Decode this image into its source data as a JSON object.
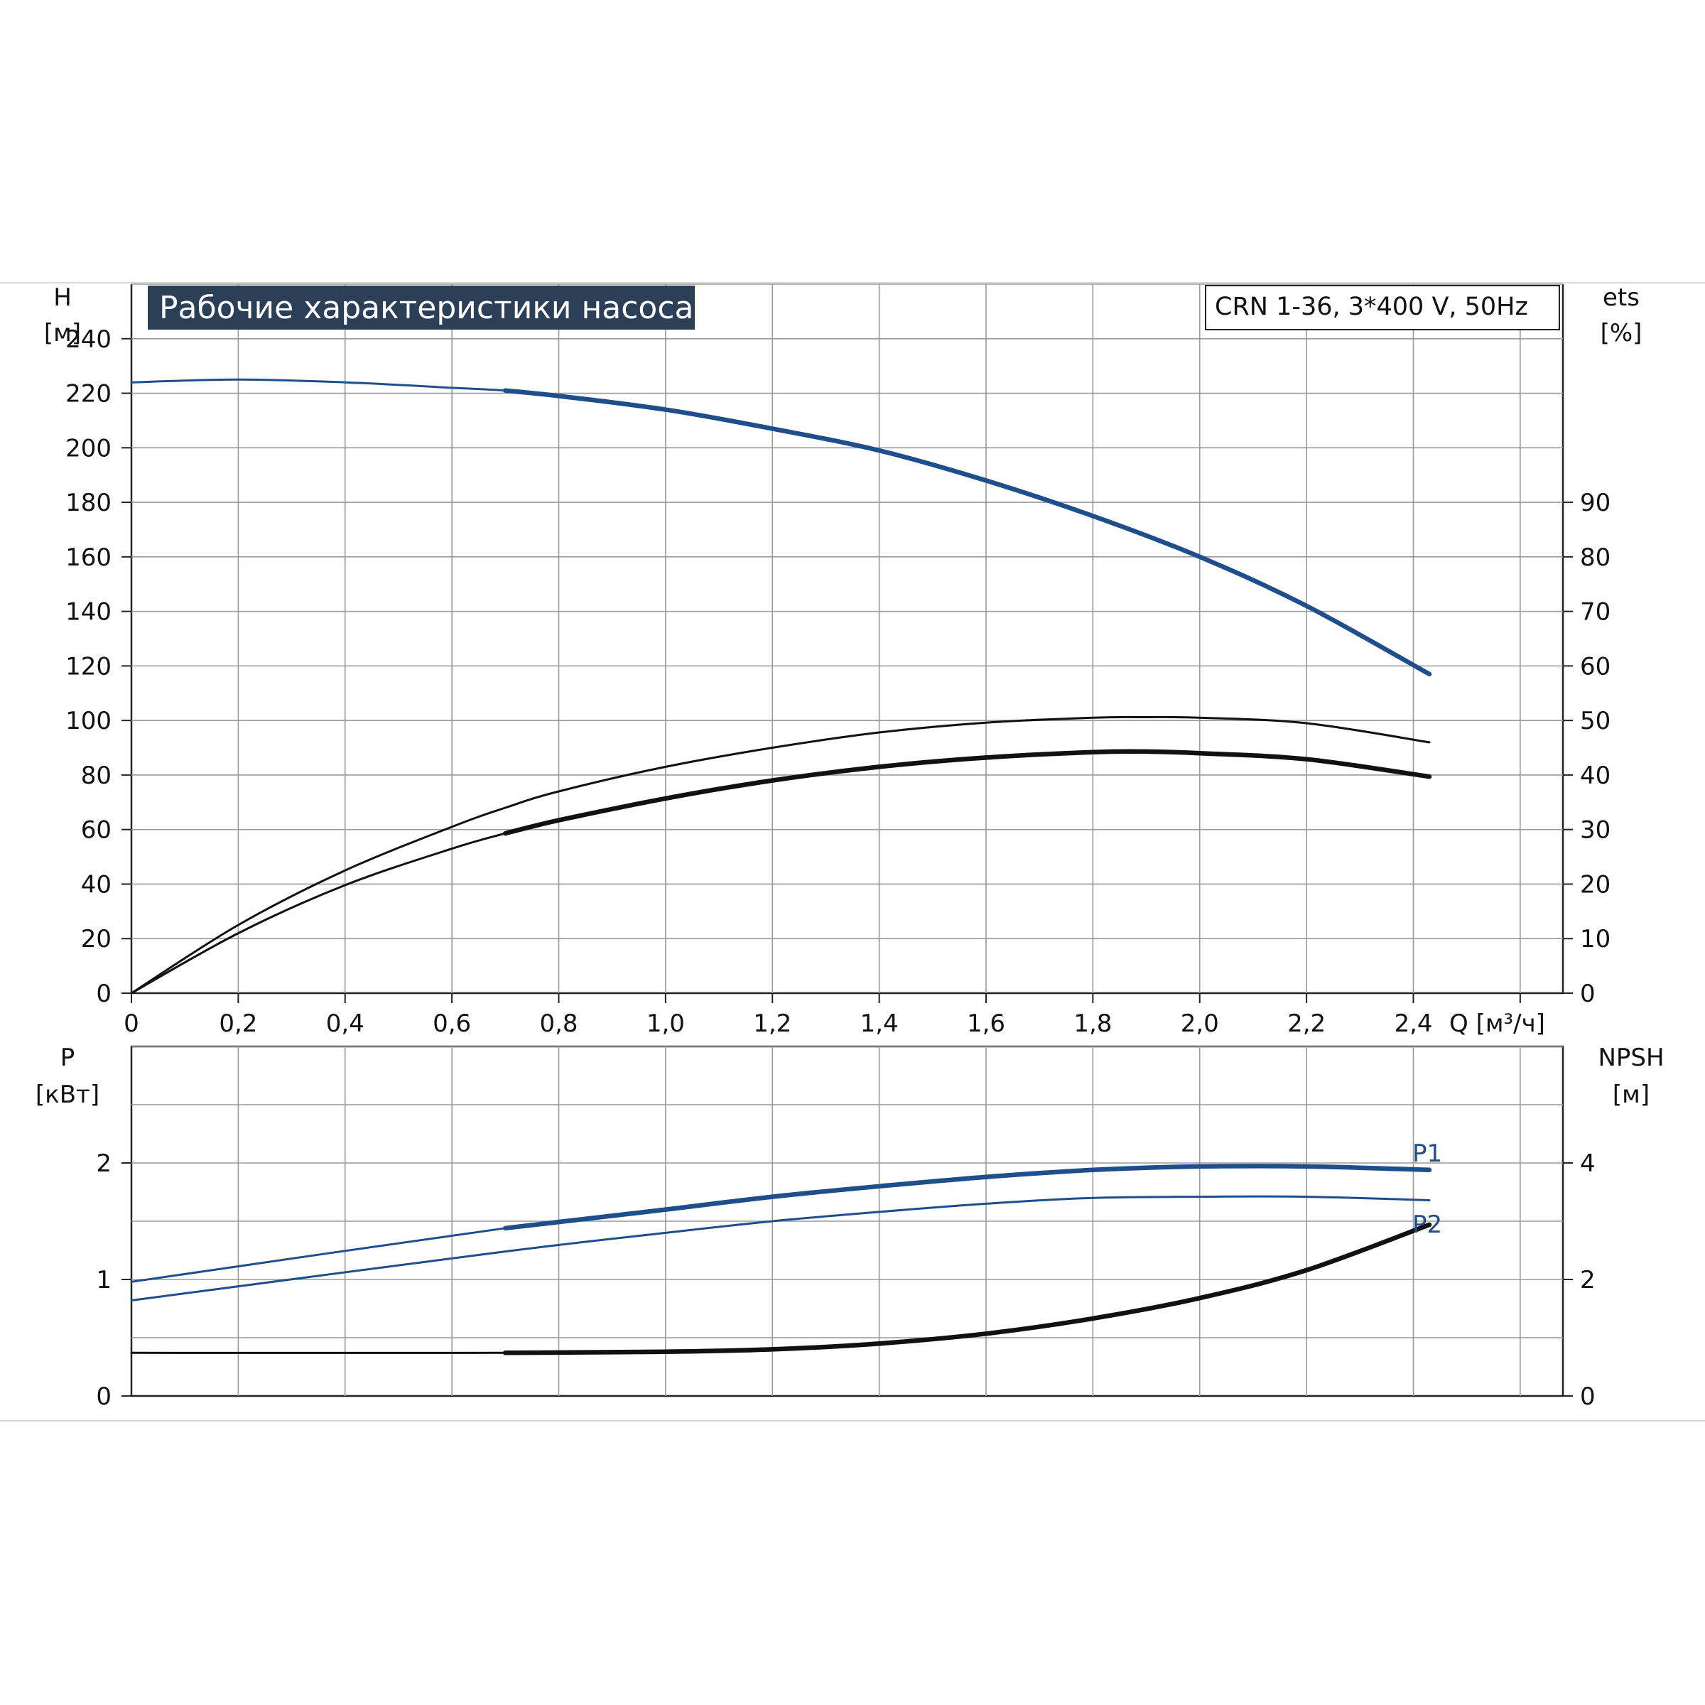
{
  "title": "Рабочие характеристики насоса",
  "model": "CRN 1-36, 3*400 V, 50Hz",
  "colors": {
    "blue": "#1f4e8c",
    "black": "#111111",
    "grid": "#9a9a9a",
    "title_bg": "#2b3f57"
  },
  "chart_data": [
    {
      "type": "line",
      "panel": "upper",
      "x_label": "Q [м³/ч]",
      "left_label": "H",
      "left_unit": "[м]",
      "right_label": "ets",
      "right_unit": "[%]",
      "xlim": [
        0,
        2.68
      ],
      "ylim": [
        0,
        260
      ],
      "y2lim": [
        0,
        130
      ],
      "x_ticks": [
        "0",
        "0,2",
        "0,4",
        "0,6",
        "0,8",
        "1,0",
        "1,2",
        "1,4",
        "1,6",
        "1,8",
        "2,0",
        "2,2",
        "2,4"
      ],
      "x_tick_values": [
        0,
        0.2,
        0.4,
        0.6,
        0.8,
        1.0,
        1.2,
        1.4,
        1.6,
        1.8,
        2.0,
        2.2,
        2.4
      ],
      "y_ticks": [
        0,
        20,
        40,
        60,
        80,
        100,
        120,
        140,
        160,
        180,
        200,
        220,
        240
      ],
      "y2_ticks": [
        0,
        10,
        20,
        30,
        40,
        50,
        60,
        70,
        80,
        90
      ],
      "series": [
        {
          "name": "",
          "axis": "left",
          "color": "#1f4e8c",
          "x": [
            0,
            0.2,
            0.4,
            0.6,
            0.7,
            0.8,
            1.0,
            1.2,
            1.4,
            1.6,
            1.8,
            2.0,
            2.2,
            2.43
          ],
          "y": [
            224,
            225,
            224,
            222,
            221,
            219,
            214,
            207,
            199,
            188,
            175,
            160,
            142,
            117
          ],
          "thick_from": 0.7
        },
        {
          "name": "",
          "axis": "right",
          "color": "#111111",
          "x": [
            0,
            0.2,
            0.4,
            0.6,
            0.7,
            0.8,
            1.0,
            1.2,
            1.4,
            1.6,
            1.8,
            1.9,
            2.0,
            2.2,
            2.43
          ],
          "y": [
            0,
            12.5,
            22.5,
            30.5,
            34,
            37,
            41.5,
            45,
            47.8,
            49.6,
            50.5,
            50.6,
            50.5,
            49.5,
            46
          ],
          "thick_from": null
        },
        {
          "name": "",
          "axis": "right",
          "color": "#111111",
          "x": [
            0,
            0.2,
            0.4,
            0.6,
            0.7,
            0.8,
            1.0,
            1.2,
            1.4,
            1.6,
            1.8,
            1.9,
            2.0,
            2.2,
            2.43
          ],
          "y": [
            0,
            11,
            19.8,
            26.5,
            29.3,
            31.7,
            35.7,
            39,
            41.5,
            43.2,
            44.2,
            44.3,
            44,
            42.9,
            39.7
          ],
          "thick_from": 0.7
        }
      ]
    },
    {
      "type": "line",
      "panel": "lower",
      "left_label": "P",
      "left_unit": "[кВт]",
      "right_label": "NPSH",
      "right_unit": "[м]",
      "xlim": [
        0,
        2.68
      ],
      "ylim": [
        0,
        3
      ],
      "y2lim": [
        0,
        6
      ],
      "y_ticks": [
        0,
        1,
        2
      ],
      "y2_ticks": [
        0,
        2,
        4
      ],
      "series": [
        {
          "name": "P1",
          "axis": "left",
          "color": "#1f4e8c",
          "x": [
            0,
            0.7,
            1.0,
            1.2,
            1.4,
            1.6,
            1.8,
            2.0,
            2.2,
            2.43
          ],
          "y": [
            0.98,
            1.44,
            1.6,
            1.71,
            1.8,
            1.88,
            1.94,
            1.97,
            1.97,
            1.94
          ],
          "thick_from": 0.7
        },
        {
          "name": "P2",
          "axis": "left",
          "color": "#1f4e8c",
          "x": [
            0,
            0.7,
            1.0,
            1.2,
            1.4,
            1.6,
            1.8,
            2.0,
            2.2,
            2.43
          ],
          "y": [
            0.82,
            1.24,
            1.4,
            1.5,
            1.58,
            1.65,
            1.7,
            1.71,
            1.71,
            1.68
          ],
          "thick_from": null
        },
        {
          "name": "",
          "axis": "right",
          "color": "#111111",
          "x": [
            0,
            0.7,
            1.0,
            1.2,
            1.4,
            1.6,
            1.8,
            2.0,
            2.2,
            2.43
          ],
          "y": [
            0.74,
            0.74,
            0.76,
            0.8,
            0.9,
            1.07,
            1.33,
            1.68,
            2.16,
            2.94
          ],
          "thick_from": 0.7
        }
      ]
    }
  ]
}
